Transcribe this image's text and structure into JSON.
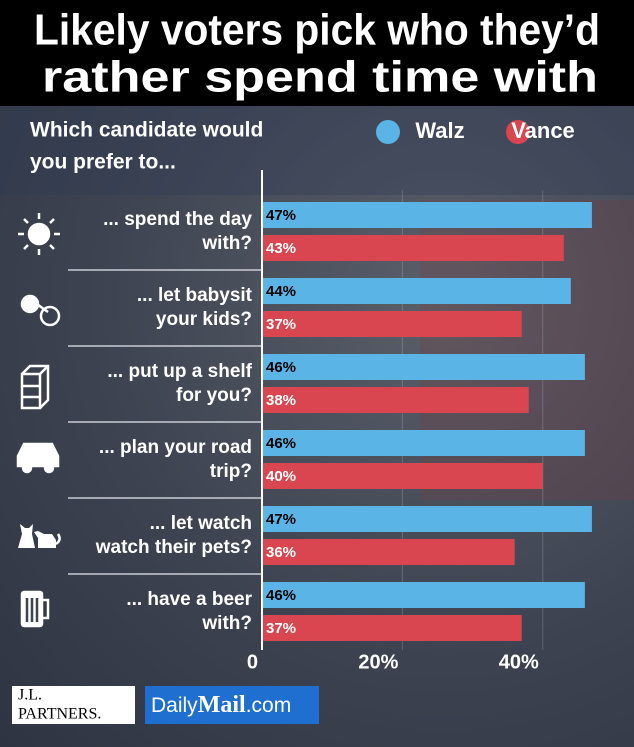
{
  "chart_data": {
    "type": "grouped-hbar",
    "title": [
      "Likely voters pick who they’d",
      "rather spend time with"
    ],
    "subtitle": [
      "Which candidate would",
      "you prefer to..."
    ],
    "categories": [
      [
        "... spend the day",
        "with?"
      ],
      [
        "... let babysit",
        "your kids?"
      ],
      [
        "... put up a shelf",
        "for you?"
      ],
      [
        "... plan your road",
        "trip?"
      ],
      [
        "... let watch",
        "watch their pets?"
      ],
      [
        "... have a beer",
        "with?"
      ]
    ],
    "series": [
      {
        "name": "Walz",
        "color": "#5ab4e6",
        "values": [
          47,
          44,
          46,
          46,
          47,
          46
        ],
        "value_labels": [
          "47%",
          "44%",
          "46%",
          "46%",
          "47%",
          "46%"
        ]
      },
      {
        "name": "Vance",
        "color": "#d9464f",
        "values": [
          43,
          37,
          38,
          40,
          36,
          37
        ],
        "value_labels": [
          "43%",
          "37%",
          "38%",
          "40%",
          "36%",
          "37%"
        ]
      }
    ],
    "xlim": [
      0,
      52
    ],
    "xticks": [
      0,
      {
        "value": 20,
        "label": "20%"
      },
      {
        "value": 40,
        "label": "40%"
      }
    ],
    "grid": true,
    "footer": {
      "pollster": [
        "J.L.",
        "PARTNERS."
      ],
      "outlet": [
        "Daily",
        "Mail",
        ".com"
      ]
    }
  }
}
